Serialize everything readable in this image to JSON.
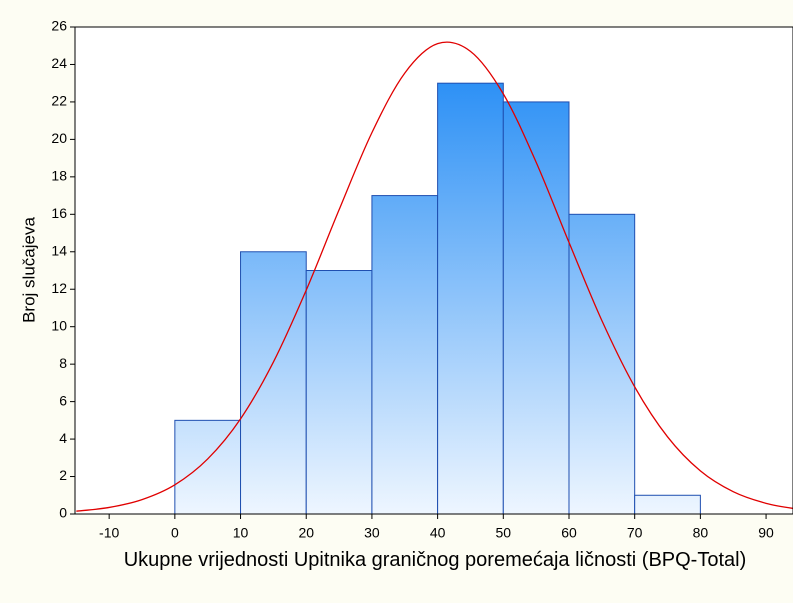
{
  "chart_data": {
    "type": "histogram",
    "x_label": "Ukupne vrijednosti Upitnika graničnog poremećaja ličnosti (BPQ-Total)",
    "y_label": "Broj slučajeva",
    "bins": [
      0,
      10,
      20,
      30,
      40,
      50,
      60,
      70,
      80
    ],
    "counts": [
      5,
      14,
      13,
      17,
      23,
      22,
      16,
      1
    ],
    "color": "#2a8ff5",
    "edge_color": "#1f4fb0",
    "xlim": [
      -15.2,
      94.1
    ],
    "ylim": [
      0,
      26
    ],
    "xticks": [
      -10,
      0,
      10,
      20,
      30,
      40,
      50,
      60,
      70,
      80,
      90
    ],
    "yticks": [
      0,
      2,
      4,
      6,
      8,
      10,
      12,
      14,
      16,
      18,
      20,
      22,
      24,
      26
    ],
    "curve": {
      "color": "#e00000",
      "x": [
        -15,
        -10,
        -5,
        0,
        5,
        10,
        15,
        20,
        25,
        30,
        35,
        40,
        45,
        50,
        55,
        60,
        65,
        70,
        75,
        80,
        85,
        90,
        95
      ],
      "values": [
        0.15,
        0.35,
        0.77,
        1.56,
        2.94,
        5.08,
        8.11,
        11.95,
        16.24,
        20.36,
        23.54,
        25.11,
        24.7,
        22.43,
        18.78,
        14.5,
        10.33,
        6.79,
        4.12,
        2.3,
        1.19,
        0.57,
        0.25
      ]
    }
  }
}
